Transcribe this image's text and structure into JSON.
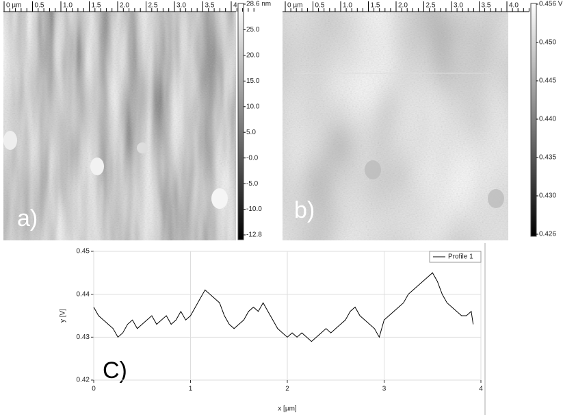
{
  "panels": [
    {
      "label": "a)",
      "scale": [
        "0 µm",
        "0.5",
        "1.0",
        "1.5",
        "2.0",
        "2.5",
        "3.0",
        "3.5",
        "4"
      ],
      "colorbar": [
        "28.6 nm",
        "25.0",
        "20.0",
        "15.0",
        "10.0",
        "5.0",
        "-0.0",
        "-5.0",
        "-10.0",
        "-12.8"
      ]
    },
    {
      "label": "b)",
      "marker": "1",
      "scale": [
        "0 µm",
        "0.5",
        "1.0",
        "1.5",
        "2.0",
        "2.5",
        "3.0",
        "3.5",
        "4.0"
      ],
      "colorbar": [
        "0.456 V",
        "0.450",
        "0.445",
        "0.440",
        "0.435",
        "0.430",
        "0.426"
      ]
    },
    {
      "label": "C)"
    }
  ],
  "chart_data": {
    "type": "line",
    "xlabel": "x [µm]",
    "ylabel": "y [V]",
    "xlim": [
      0,
      4
    ],
    "xticks": [
      0,
      1,
      2,
      3,
      4
    ],
    "ylim": [
      0.42,
      0.45
    ],
    "yticks": [
      0.42,
      0.43,
      0.44,
      0.45
    ],
    "grid": true,
    "legend": "upper right",
    "x": [
      0,
      0.05,
      0.1,
      0.15,
      0.2,
      0.25,
      0.3,
      0.35,
      0.4,
      0.45,
      0.5,
      0.55,
      0.6,
      0.65,
      0.7,
      0.75,
      0.8,
      0.85,
      0.9,
      0.95,
      1.0,
      1.05,
      1.1,
      1.15,
      1.2,
      1.25,
      1.3,
      1.35,
      1.4,
      1.45,
      1.5,
      1.55,
      1.6,
      1.65,
      1.7,
      1.75,
      1.8,
      1.85,
      1.9,
      1.95,
      2.0,
      2.05,
      2.1,
      2.15,
      2.2,
      2.25,
      2.3,
      2.35,
      2.4,
      2.45,
      2.5,
      2.55,
      2.6,
      2.65,
      2.7,
      2.75,
      2.8,
      2.85,
      2.9,
      2.95,
      3.0,
      3.05,
      3.1,
      3.15,
      3.2,
      3.25,
      3.3,
      3.35,
      3.4,
      3.45,
      3.5,
      3.55,
      3.6,
      3.65,
      3.7,
      3.75,
      3.8,
      3.85,
      3.9,
      3.92
    ],
    "series": [
      {
        "name": "Profile 1",
        "color": "#000000",
        "values": [
          0.437,
          0.435,
          0.434,
          0.433,
          0.432,
          0.43,
          0.431,
          0.433,
          0.434,
          0.432,
          0.433,
          0.434,
          0.435,
          0.433,
          0.434,
          0.435,
          0.433,
          0.434,
          0.436,
          0.434,
          0.435,
          0.437,
          0.439,
          0.441,
          0.44,
          0.439,
          0.438,
          0.435,
          0.433,
          0.432,
          0.433,
          0.434,
          0.436,
          0.437,
          0.436,
          0.438,
          0.436,
          0.434,
          0.432,
          0.431,
          0.43,
          0.431,
          0.43,
          0.431,
          0.43,
          0.429,
          0.43,
          0.431,
          0.432,
          0.431,
          0.432,
          0.433,
          0.434,
          0.436,
          0.437,
          0.435,
          0.434,
          0.433,
          0.432,
          0.43,
          0.434,
          0.435,
          0.436,
          0.437,
          0.438,
          0.44,
          0.441,
          0.442,
          0.443,
          0.444,
          0.445,
          0.443,
          0.44,
          0.438,
          0.437,
          0.436,
          0.435,
          0.435,
          0.436,
          0.433
        ]
      }
    ]
  }
}
